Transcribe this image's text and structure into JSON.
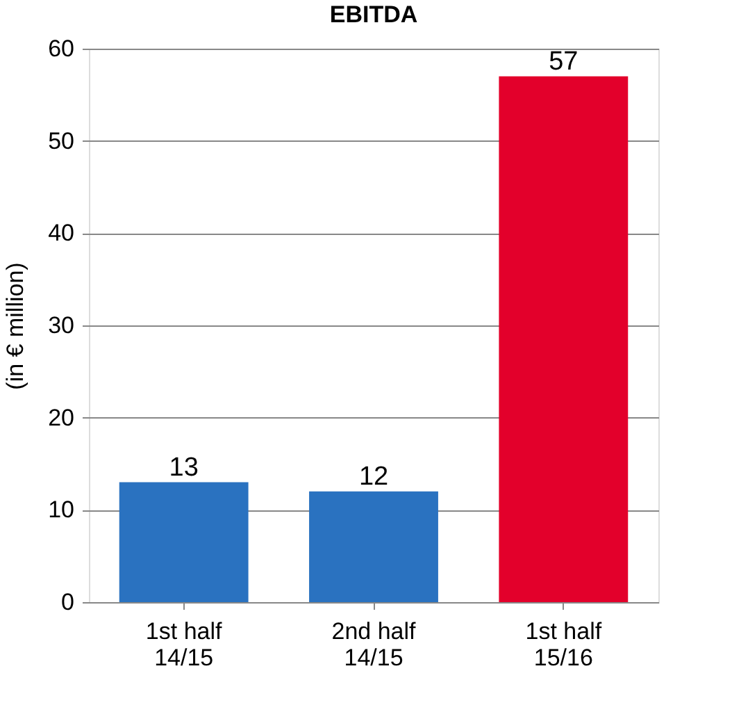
{
  "chart_data": {
    "type": "bar",
    "title": "EBITDA",
    "ylabel": "(in € million)",
    "categories": [
      "1st half\n14/15",
      "2nd half\n14/15",
      "1st half\n15/16"
    ],
    "values": [
      13,
      12,
      57
    ],
    "colors": [
      "#2a72c0",
      "#2a72c0",
      "#e3002b"
    ],
    "ylim": [
      0,
      60
    ],
    "yticks": [
      0,
      10,
      20,
      30,
      40,
      50,
      60
    ],
    "grid": "y",
    "data_labels": true
  }
}
